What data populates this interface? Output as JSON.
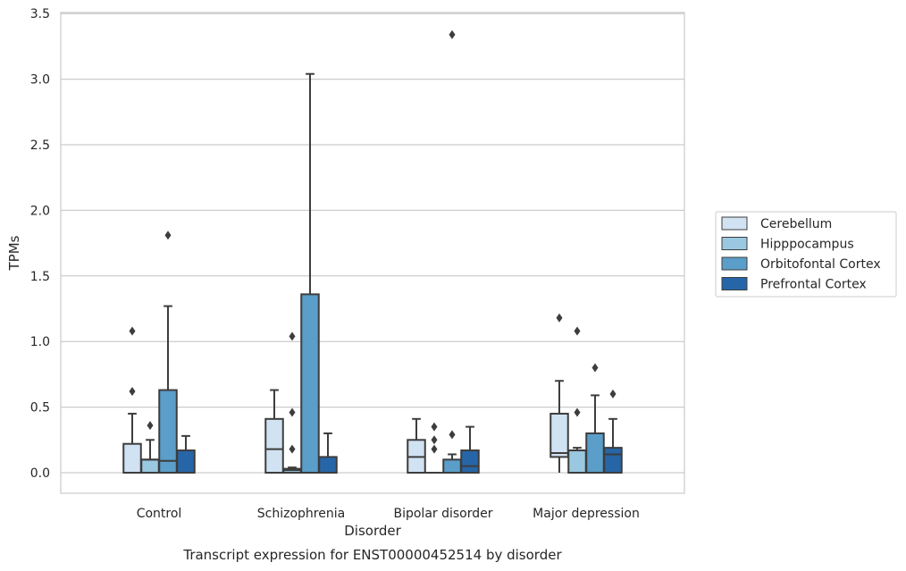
{
  "chart_data": {
    "type": "box",
    "title": "",
    "caption": "Transcript expression for ENST00000452514 by disorder",
    "xlabel": "Disorder",
    "ylabel": "TPMs",
    "ylim": [
      -0.16,
      3.52
    ],
    "yticks": [
      0.0,
      0.5,
      1.0,
      1.5,
      2.0,
      2.5,
      3.0,
      3.5
    ],
    "ytick_labels": [
      "0.0",
      "0.5",
      "1.0",
      "1.5",
      "2.0",
      "2.5",
      "3.0",
      "3.5"
    ],
    "grid": "horizontal",
    "legend_position": "right",
    "categories": [
      "Control",
      "Schizophrenia",
      "Bipolar disorder",
      "Major depression"
    ],
    "series": [
      {
        "name": "Cerebellum",
        "color": "#d1e2f2",
        "boxes": [
          {
            "whislo": 0.0,
            "q1": 0.0,
            "median": 0.0,
            "q3": 0.22,
            "whishi": 0.45,
            "fliers": [
              0.62,
              1.08
            ]
          },
          {
            "whislo": 0.0,
            "q1": 0.0,
            "median": 0.18,
            "q3": 0.41,
            "whishi": 0.63,
            "fliers": []
          },
          {
            "whislo": 0.0,
            "q1": 0.0,
            "median": 0.12,
            "q3": 0.25,
            "whishi": 0.41,
            "fliers": []
          },
          {
            "whislo": 0.0,
            "q1": 0.12,
            "median": 0.15,
            "q3": 0.45,
            "whishi": 0.7,
            "fliers": [
              1.18
            ]
          }
        ]
      },
      {
        "name": "Hipppocampus",
        "color": "#9ac8e0",
        "boxes": [
          {
            "whislo": 0.0,
            "q1": 0.0,
            "median": 0.1,
            "q3": 0.1,
            "whishi": 0.25,
            "fliers": [
              0.36
            ]
          },
          {
            "whislo": 0.0,
            "q1": 0.0,
            "median": 0.02,
            "q3": 0.03,
            "whishi": 0.04,
            "fliers": [
              0.18,
              0.46,
              1.04
            ]
          },
          {
            "whislo": 0.0,
            "q1": 0.0,
            "median": 0.0,
            "q3": 0.0,
            "whishi": 0.0,
            "fliers": [
              0.18,
              0.25,
              0.35
            ]
          },
          {
            "whislo": 0.0,
            "q1": 0.0,
            "median": 0.17,
            "q3": 0.17,
            "whishi": 0.19,
            "fliers": [
              0.46,
              1.08
            ]
          }
        ]
      },
      {
        "name": "Orbitofontal Cortex",
        "color": "#5a9ec9",
        "boxes": [
          {
            "whislo": 0.0,
            "q1": 0.0,
            "median": 0.09,
            "q3": 0.63,
            "whishi": 1.27,
            "fliers": [
              1.81
            ]
          },
          {
            "whislo": 0.0,
            "q1": 0.0,
            "median": 0.0,
            "q3": 1.36,
            "whishi": 3.04,
            "fliers": []
          },
          {
            "whislo": 0.0,
            "q1": 0.0,
            "median": 0.0,
            "q3": 0.1,
            "whishi": 0.14,
            "fliers": [
              0.29,
              3.34
            ]
          },
          {
            "whislo": 0.0,
            "q1": 0.0,
            "median": 0.0,
            "q3": 0.3,
            "whishi": 0.59,
            "fliers": [
              0.8
            ]
          }
        ]
      },
      {
        "name": "Prefrontal Cortex",
        "color": "#2666a8",
        "boxes": [
          {
            "whislo": 0.0,
            "q1": 0.0,
            "median": 0.0,
            "q3": 0.17,
            "whishi": 0.28,
            "fliers": []
          },
          {
            "whislo": 0.0,
            "q1": 0.0,
            "median": 0.0,
            "q3": 0.12,
            "whishi": 0.3,
            "fliers": []
          },
          {
            "whislo": 0.0,
            "q1": 0.0,
            "median": 0.05,
            "q3": 0.17,
            "whishi": 0.35,
            "fliers": []
          },
          {
            "whislo": 0.0,
            "q1": 0.0,
            "median": 0.14,
            "q3": 0.19,
            "whishi": 0.41,
            "fliers": [
              0.6
            ]
          }
        ]
      }
    ]
  }
}
